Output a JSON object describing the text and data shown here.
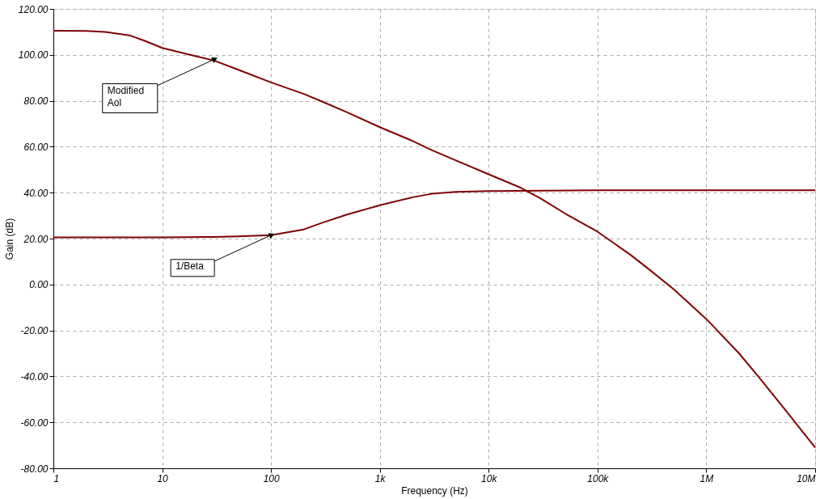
{
  "chart_data": {
    "type": "line",
    "xlabel": "Frequency (Hz)",
    "ylabel": "Gain (dB)",
    "log": "x",
    "grid": true,
    "marker": "none",
    "line_style": "solid",
    "xlim": [
      1,
      10000000
    ],
    "ylim": [
      -80,
      120
    ],
    "xticks": [
      1,
      10,
      100,
      {
        "value": 1000,
        "label": "1k"
      },
      {
        "value": 10000,
        "label": "10k"
      },
      {
        "value": 100000,
        "label": "100k"
      },
      {
        "value": 1000000,
        "label": "1M"
      },
      {
        "value": 10000000,
        "label": "10M"
      }
    ],
    "yticks": [
      {
        "value": -80,
        "label": "-80.00"
      },
      {
        "value": -60,
        "label": "-60.00"
      },
      {
        "value": -40,
        "label": "-40.00"
      },
      {
        "value": -20,
        "label": "-20.00"
      },
      {
        "value": 0,
        "label": "0.00"
      },
      {
        "value": 20,
        "label": "20.00"
      },
      {
        "value": 40,
        "label": "40.00"
      },
      {
        "value": 60,
        "label": "60.00"
      },
      {
        "value": 80,
        "label": "80.00"
      },
      {
        "value": 100,
        "label": "100.00"
      },
      {
        "value": 120,
        "label": "120.00"
      }
    ],
    "series": [
      {
        "color": "#800000",
        "x": [
          1,
          2,
          3,
          5,
          7,
          10,
          20,
          30,
          50,
          100,
          200,
          300,
          500,
          1000,
          2000,
          3000,
          5000,
          10000,
          20000,
          30000,
          50000,
          100000,
          200000,
          300000,
          500000,
          1000000,
          2000000,
          3000000,
          5000000,
          10000000
        ],
        "values": [
          110.5,
          110.4,
          110,
          108.5,
          106,
          103,
          99.5,
          97.5,
          93.5,
          88,
          83,
          79.5,
          75,
          68.5,
          62.5,
          58.5,
          54,
          48,
          42,
          37.5,
          31,
          23,
          13,
          6.5,
          -2,
          -15,
          -30,
          -40,
          -53,
          -71
        ]
      },
      {
        "color": "#800000",
        "x": [
          1,
          10,
          30,
          50,
          100,
          200,
          300,
          500,
          1000,
          2000,
          3000,
          5000,
          10000,
          100000,
          10000000
        ],
        "values": [
          20.5,
          20.5,
          20.7,
          21,
          21.5,
          24,
          27,
          30.5,
          34.5,
          38,
          39.5,
          40.3,
          40.7,
          41,
          41
        ]
      }
    ],
    "annotations": [
      {
        "text": "Modified Aol",
        "x": 30,
        "y": 98
      },
      {
        "text": "1/Beta",
        "x": 100,
        "y": 21.5
      }
    ]
  }
}
